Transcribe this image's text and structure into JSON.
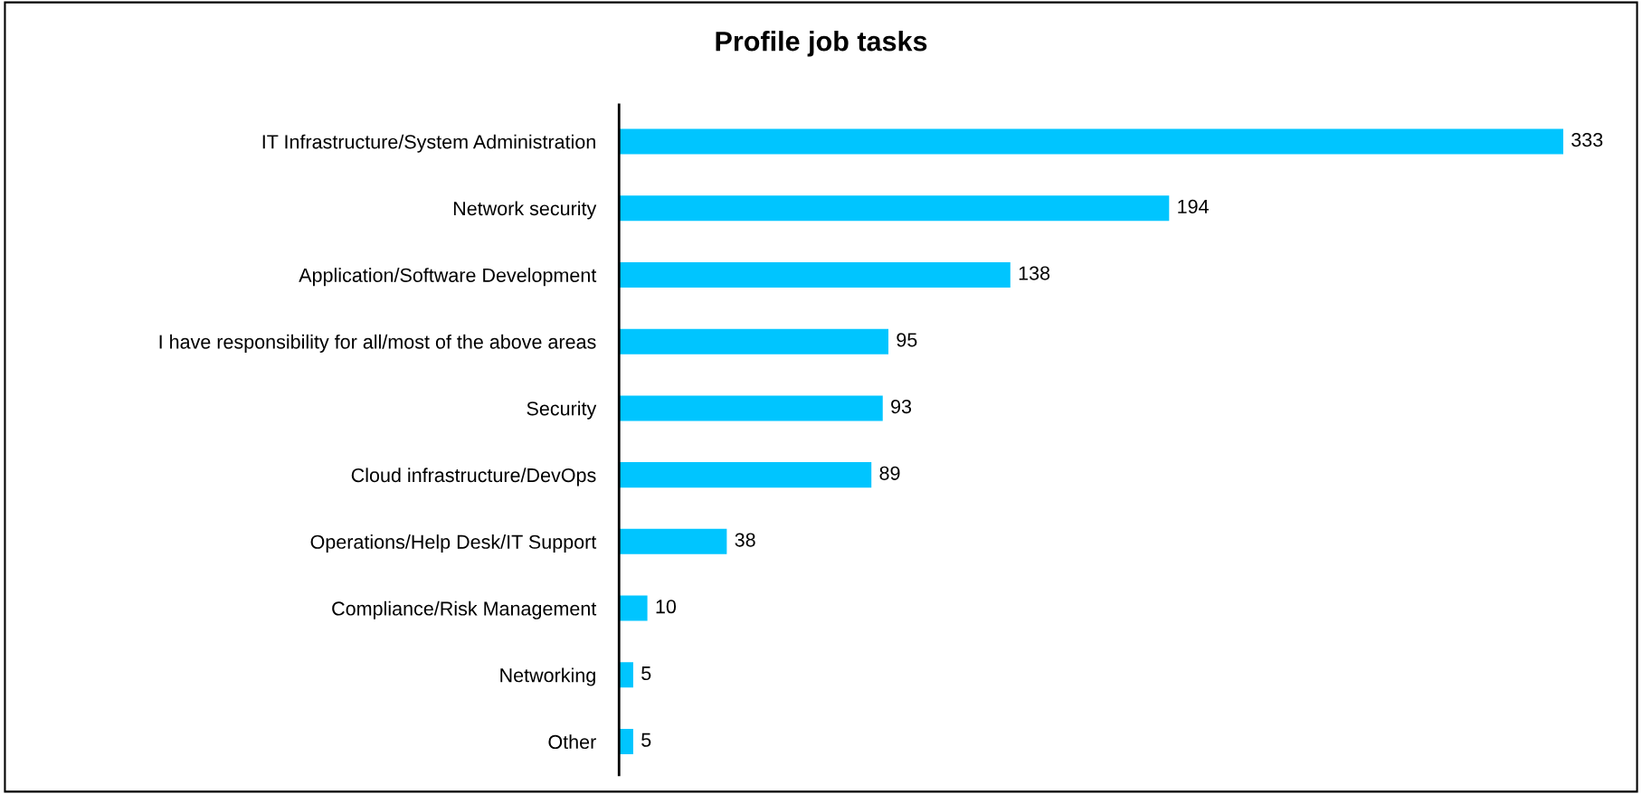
{
  "chart_data": {
    "type": "bar",
    "orientation": "horizontal",
    "title": "Profile job tasks",
    "categories": [
      "IT Infrastructure/System Administration",
      "Network security",
      "Application/Software Development",
      "I have responsibility for all/most of the above areas",
      "Security",
      "Cloud infrastructure/DevOps",
      "Operations/Help Desk/IT Support",
      "Compliance/Risk Management",
      "Networking",
      "Other"
    ],
    "values": [
      333,
      194,
      138,
      95,
      93,
      89,
      38,
      10,
      5,
      5
    ],
    "color": "#00c5ff",
    "data_labels": true,
    "grid": false,
    "legend": false
  }
}
